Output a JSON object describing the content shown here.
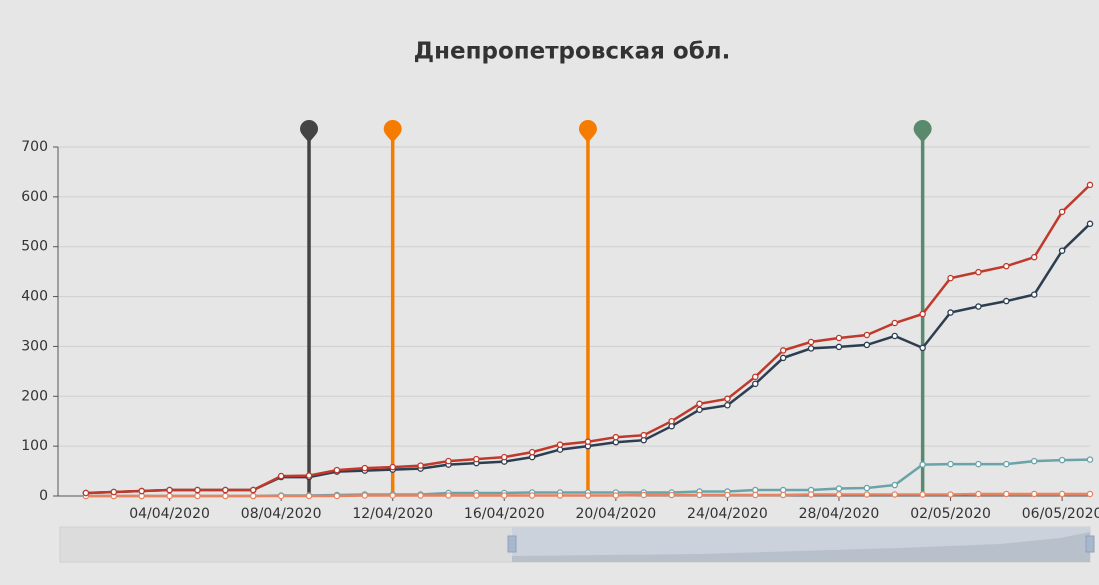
{
  "chart_data": {
    "type": "line",
    "title": "Днепропетровская обл.",
    "x": [
      "01/04/2020",
      "02/04/2020",
      "03/04/2020",
      "04/04/2020",
      "05/04/2020",
      "06/04/2020",
      "07/04/2020",
      "08/04/2020",
      "09/04/2020",
      "10/04/2020",
      "11/04/2020",
      "12/04/2020",
      "13/04/2020",
      "14/04/2020",
      "15/04/2020",
      "16/04/2020",
      "17/04/2020",
      "18/04/2020",
      "19/04/2020",
      "20/04/2020",
      "21/04/2020",
      "22/04/2020",
      "23/04/2020",
      "24/04/2020",
      "25/04/2020",
      "26/04/2020",
      "27/04/2020",
      "28/04/2020",
      "29/04/2020",
      "30/04/2020",
      "01/05/2020",
      "02/05/2020",
      "03/05/2020",
      "04/05/2020",
      "05/05/2020",
      "06/05/2020",
      "07/05/2020"
    ],
    "series": [
      {
        "color": "#6aa3a8",
        "values": [
          0,
          0,
          0,
          0,
          0,
          0,
          0,
          1,
          1,
          2,
          3,
          3,
          3,
          6,
          6,
          6,
          7,
          7,
          7,
          7,
          7,
          7,
          9,
          9,
          12,
          12,
          12,
          15,
          16,
          22,
          63,
          64,
          64,
          64,
          70,
          72,
          73
        ]
      },
      {
        "color": "#e8825f",
        "values": [
          0,
          0,
          0,
          0,
          0,
          0,
          0,
          0,
          0,
          0,
          1,
          1,
          1,
          1,
          1,
          1,
          1,
          1,
          1,
          1,
          2,
          2,
          2,
          2,
          2,
          2,
          3,
          3,
          3,
          3,
          3,
          3,
          4,
          4,
          4,
          4,
          4
        ]
      },
      {
        "color": "#2c3e50",
        "values": [
          6,
          8,
          10,
          12,
          12,
          12,
          12,
          38,
          38,
          49,
          51,
          53,
          55,
          63,
          66,
          69,
          78,
          93,
          100,
          108,
          112,
          140,
          173,
          182,
          225,
          277,
          296,
          299,
          303,
          321,
          297,
          368,
          380,
          391,
          404,
          492,
          546
        ]
      },
      {
        "color": "#c0392b",
        "values": [
          6,
          8,
          10,
          12,
          12,
          12,
          12,
          40,
          41,
          52,
          56,
          58,
          61,
          70,
          74,
          78,
          88,
          103,
          109,
          118,
          122,
          150,
          185,
          195,
          239,
          292,
          309,
          317,
          323,
          347,
          365,
          437,
          449,
          461,
          479,
          570,
          624
        ]
      }
    ],
    "xlim": [
      "31/03/2020",
      "07/05/2020"
    ],
    "xticks": [
      "04/04/2020",
      "08/04/2020",
      "12/04/2020",
      "16/04/2020",
      "20/04/2020",
      "24/04/2020",
      "28/04/2020",
      "02/05/2020",
      "06/05/2020"
    ],
    "ylim": [
      0,
      700
    ],
    "yticks": [
      0,
      100,
      200,
      300,
      400,
      500,
      600,
      700
    ],
    "grid": true,
    "events": [
      {
        "x": "09/04/2020",
        "color": "#444444"
      },
      {
        "x": "12/04/2020",
        "color": "#f57c00"
      },
      {
        "x": "19/04/2020",
        "color": "#f57c00"
      },
      {
        "x": "01/05/2020",
        "color": "#5a8a6e"
      }
    ]
  }
}
